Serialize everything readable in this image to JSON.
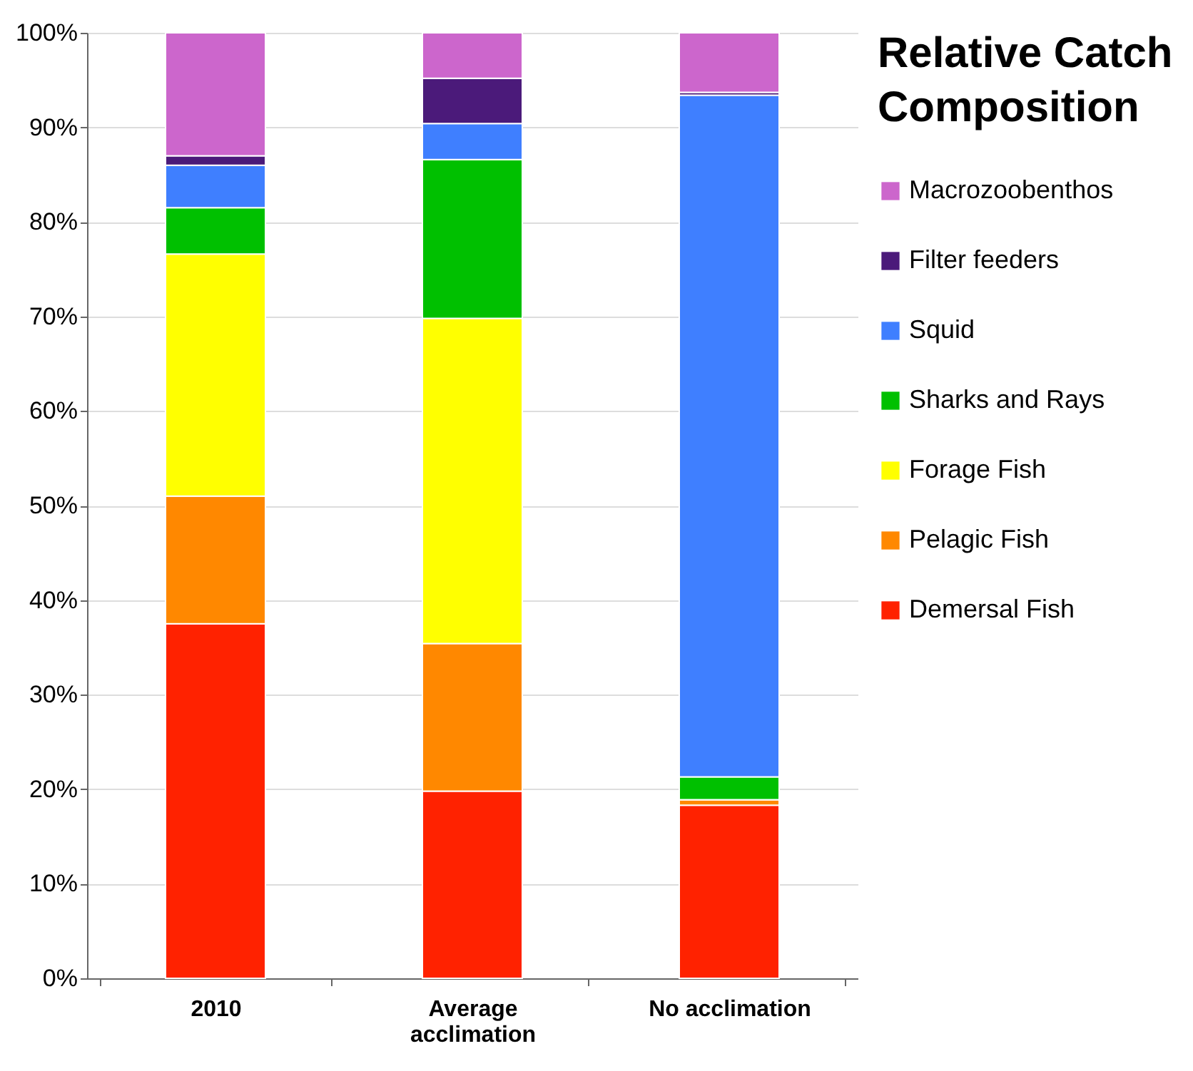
{
  "chart_data": {
    "type": "bar",
    "stacked": true,
    "legend_title": "Relative Catch Composition",
    "categories": [
      "2010",
      "Average acclimation",
      "No acclimation"
    ],
    "series": [
      {
        "name": "Demersal Fish",
        "color": "#ff2200",
        "values": [
          37.5,
          19.8,
          18.3
        ]
      },
      {
        "name": "Pelagic Fish",
        "color": "#ff8800",
        "values": [
          13.5,
          15.6,
          0.6
        ]
      },
      {
        "name": "Forage Fish",
        "color": "#ffff00",
        "values": [
          25.6,
          34.4,
          0
        ]
      },
      {
        "name": "Sharks and Rays",
        "color": "#00c000",
        "values": [
          4.9,
          16.8,
          2.4
        ]
      },
      {
        "name": "Squid",
        "color": "#3f7fff",
        "values": [
          4.5,
          3.8,
          72.1
        ]
      },
      {
        "name": "Filter feeders",
        "color": "#4b1a7a",
        "values": [
          1.0,
          4.8,
          0.3
        ]
      },
      {
        "name": "Macrozoobenthos",
        "color": "#cc66cc",
        "values": [
          13.0,
          4.8,
          6.3
        ]
      }
    ],
    "ylim": [
      0,
      100
    ],
    "yticks": [
      {
        "value": 0,
        "label": "0%"
      },
      {
        "value": 10,
        "label": "10%"
      },
      {
        "value": 20,
        "label": "20%"
      },
      {
        "value": 30,
        "label": "30%"
      },
      {
        "value": 40,
        "label": "40%"
      },
      {
        "value": 50,
        "label": "50%"
      },
      {
        "value": 60,
        "label": "60%"
      },
      {
        "value": 70,
        "label": "70%"
      },
      {
        "value": 80,
        "label": "80%"
      },
      {
        "value": 90,
        "label": "90%"
      },
      {
        "value": 100,
        "label": "100%"
      }
    ],
    "grid": "y",
    "legend": "right"
  }
}
